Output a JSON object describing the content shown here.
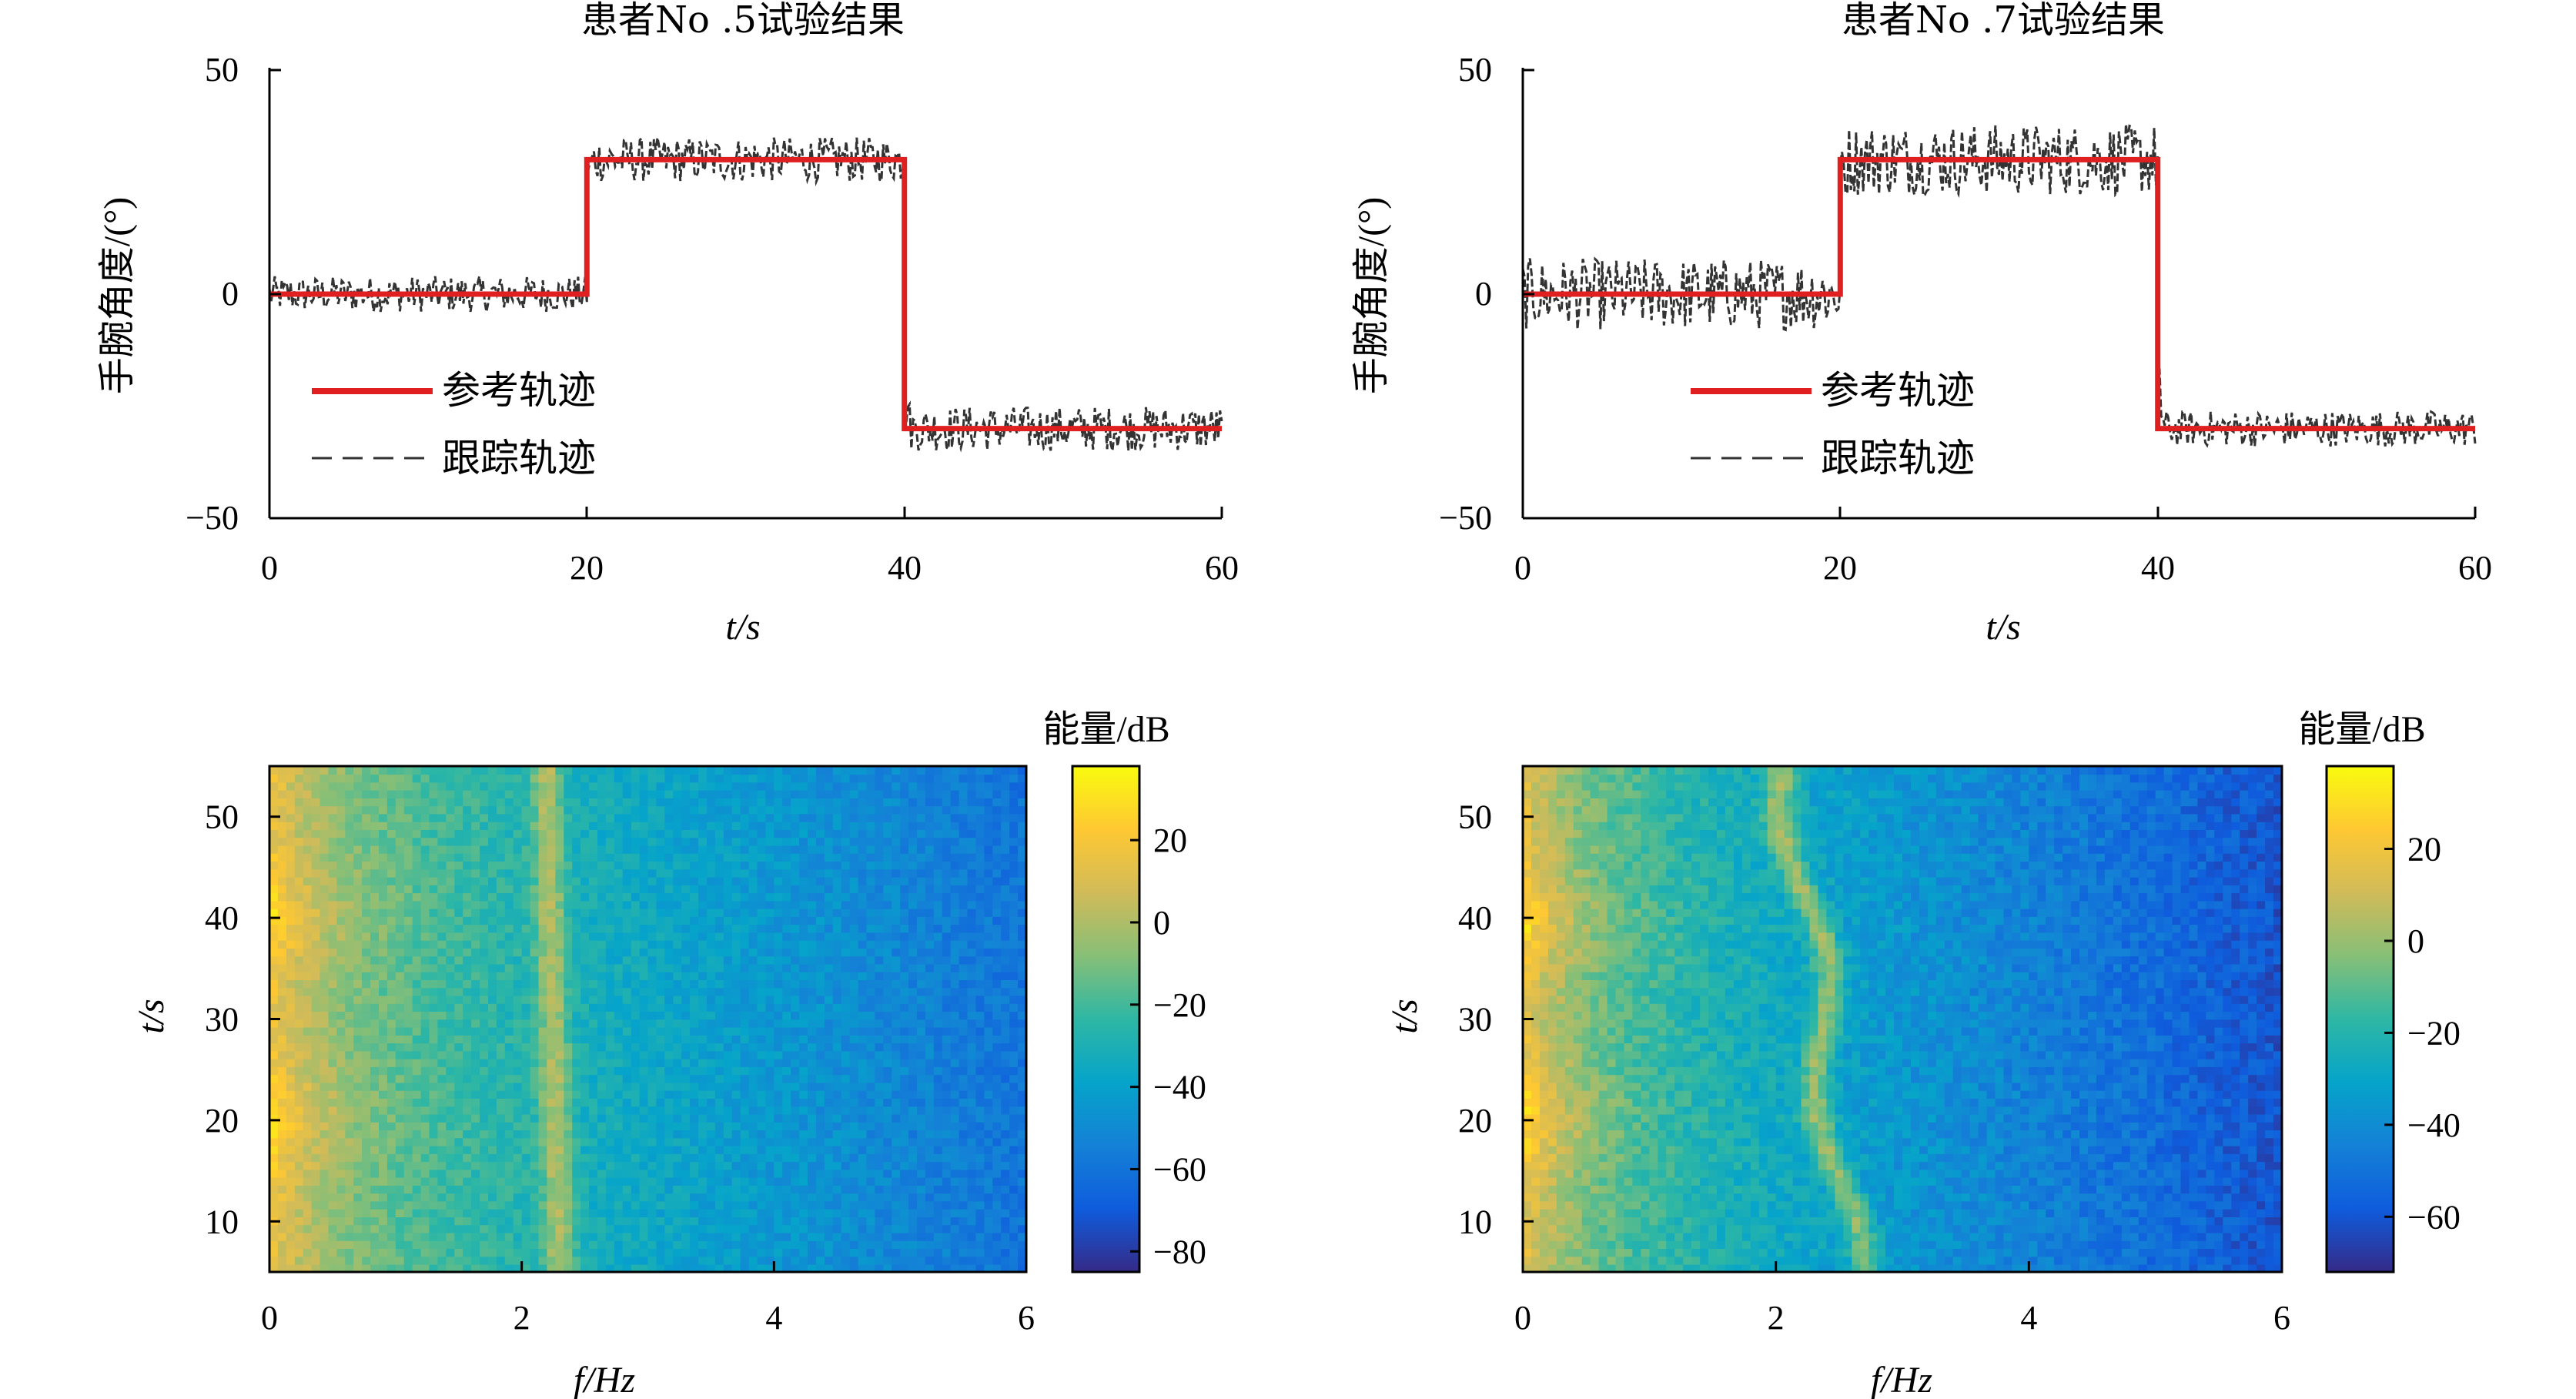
{
  "chart_data": [
    {
      "type": "line",
      "title": "患者No .5试验结果",
      "xlabel": "t/s",
      "ylabel": "手腕角度/(°)",
      "xlim": [
        0,
        60
      ],
      "ylim": [
        -50,
        50
      ],
      "xticks": [
        "0",
        "20",
        "40",
        "60"
      ],
      "yticks": [
        "50",
        "0",
        "−50"
      ],
      "grid": false,
      "legend_position": "lower-left",
      "series": [
        {
          "name": "参考轨迹",
          "color": "#e02020",
          "style": "solid",
          "x": [
            0,
            20,
            20,
            40,
            40,
            60
          ],
          "y": [
            0,
            0,
            30,
            30,
            -30,
            -30
          ]
        },
        {
          "name": "跟踪轨迹",
          "color": "#333333",
          "style": "dashed",
          "noise_amplitude": [
            4,
            5,
            5
          ],
          "x": [
            0,
            20,
            20,
            40,
            40,
            60
          ],
          "y": [
            0,
            0,
            30,
            30,
            -30,
            -30
          ]
        }
      ]
    },
    {
      "type": "line",
      "title": "患者No .7试验结果",
      "xlabel": "t/s",
      "ylabel": "手腕角度/(°)",
      "xlim": [
        0,
        60
      ],
      "ylim": [
        -50,
        50
      ],
      "xticks": [
        "0",
        "20",
        "40",
        "60"
      ],
      "yticks": [
        "50",
        "0",
        "−50"
      ],
      "grid": false,
      "legend_position": "lower-left",
      "series": [
        {
          "name": "参考轨迹",
          "color": "#e02020",
          "style": "solid",
          "x": [
            0,
            20,
            20,
            40,
            40,
            60
          ],
          "y": [
            0,
            0,
            30,
            30,
            -30,
            -30
          ]
        },
        {
          "name": "跟踪轨迹",
          "color": "#333333",
          "style": "dashed",
          "noise_amplitude": [
            8,
            8,
            4
          ],
          "x": [
            0,
            20,
            20,
            40,
            40,
            60
          ],
          "y": [
            0,
            0,
            30,
            30,
            -30,
            -30
          ]
        }
      ]
    },
    {
      "type": "heatmap",
      "xlabel": "f/Hz",
      "ylabel": "t/s",
      "colorbar_label": "能量/dB",
      "xlim": [
        0,
        6
      ],
      "ylim": [
        5,
        55
      ],
      "xticks": [
        "0",
        "2",
        "4",
        "6"
      ],
      "yticks": [
        "50",
        "40",
        "30",
        "20",
        "10"
      ],
      "ytick_values": [
        50,
        40,
        30,
        20,
        10
      ],
      "clim": [
        -85,
        38
      ],
      "colorbar_ticks": [
        "20",
        "0",
        "−20",
        "−40",
        "−60",
        "−80"
      ],
      "colorbar_tick_values": [
        20,
        0,
        -20,
        -40,
        -60,
        -80
      ],
      "colormap": "parula",
      "ridge_frequency": [
        2.2,
        2.3
      ],
      "low_frequency_peaks_t": [
        40,
        20
      ]
    },
    {
      "type": "heatmap",
      "xlabel": "f/Hz",
      "ylabel": "t/s",
      "colorbar_label": "能量/dB",
      "xlim": [
        0,
        6
      ],
      "ylim": [
        5,
        55
      ],
      "xticks": [
        "0",
        "2",
        "4",
        "6"
      ],
      "yticks": [
        "50",
        "40",
        "30",
        "20",
        "10"
      ],
      "ytick_values": [
        50,
        40,
        30,
        20,
        10
      ],
      "clim": [
        -72,
        38
      ],
      "colorbar_ticks": [
        "20",
        "0",
        "−20",
        "−40",
        "−60"
      ],
      "colorbar_tick_values": [
        20,
        0,
        -20,
        -40,
        -60
      ],
      "colormap": "parula",
      "ridge_frequency": [
        2.1,
        2.6
      ],
      "low_frequency_peaks_t": [
        40,
        20
      ]
    }
  ]
}
